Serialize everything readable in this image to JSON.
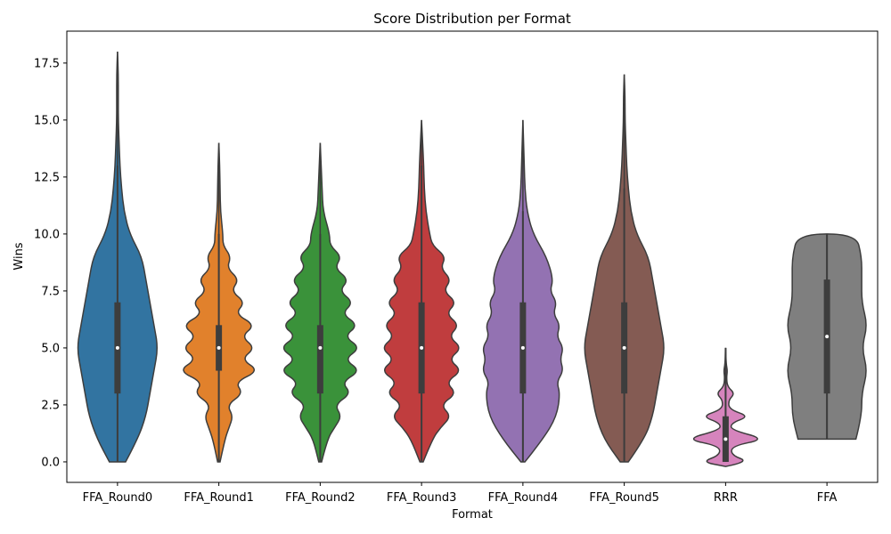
{
  "chart_data": {
    "type": "violin",
    "title": "Score Distribution per Format",
    "xlabel": "Format",
    "ylabel": "Wins",
    "ylim": [
      -0.9,
      18.9
    ],
    "yticks": [
      "0.0",
      "2.5",
      "5.0",
      "7.5",
      "10.0",
      "12.5",
      "15.0",
      "17.5"
    ],
    "grid": false,
    "colors": [
      "#3274a1",
      "#e1812c",
      "#3a923a",
      "#c03d3e",
      "#9372b2",
      "#845b53",
      "#d684bd",
      "#7f7f7f"
    ],
    "categories": [
      "FFA_Round0",
      "FFA_Round1",
      "FFA_Round2",
      "FFA_Round3",
      "FFA_Round4",
      "FFA_Round5",
      "RRR",
      "FFA"
    ],
    "series": [
      {
        "category": "FFA_Round0",
        "min": 0,
        "q1": 3,
        "median": 5,
        "q3": 7,
        "max": 18,
        "whisker_high": 13,
        "density": [
          [
            0,
            0.1
          ],
          [
            1,
            0.25
          ],
          [
            2,
            0.35
          ],
          [
            3,
            0.4
          ],
          [
            4,
            0.45
          ],
          [
            5,
            0.5
          ],
          [
            6,
            0.45
          ],
          [
            7,
            0.4
          ],
          [
            8,
            0.35
          ],
          [
            9,
            0.3
          ],
          [
            10,
            0.15
          ],
          [
            11,
            0.08
          ],
          [
            12,
            0.05
          ],
          [
            13,
            0.03
          ],
          [
            14,
            0.02
          ],
          [
            15,
            0.01
          ],
          [
            16,
            0.01
          ],
          [
            17,
            0.01
          ],
          [
            18,
            0.0
          ]
        ]
      },
      {
        "category": "FFA_Round1",
        "min": 0,
        "q1": 4,
        "median": 5,
        "q3": 6,
        "max": 14,
        "whisker_high": 10,
        "density": [
          [
            0,
            0.03
          ],
          [
            1,
            0.15
          ],
          [
            1.5,
            0.25
          ],
          [
            2,
            0.35
          ],
          [
            2.5,
            0.2
          ],
          [
            3,
            0.6
          ],
          [
            3.5,
            0.4
          ],
          [
            4,
            1.0
          ],
          [
            4.5,
            0.55
          ],
          [
            5,
            0.9
          ],
          [
            5.5,
            0.55
          ],
          [
            6,
            0.9
          ],
          [
            6.5,
            0.4
          ],
          [
            7,
            0.65
          ],
          [
            7.5,
            0.3
          ],
          [
            8,
            0.5
          ],
          [
            8.5,
            0.2
          ],
          [
            9,
            0.3
          ],
          [
            9.5,
            0.1
          ],
          [
            10,
            0.1
          ],
          [
            11,
            0.04
          ],
          [
            12,
            0.03
          ],
          [
            13,
            0.02
          ],
          [
            14,
            0.0
          ]
        ]
      },
      {
        "category": "FFA_Round2",
        "min": 0,
        "q1": 3,
        "median": 5,
        "q3": 6,
        "max": 14,
        "whisker_high": 10,
        "density": [
          [
            0,
            0.03
          ],
          [
            1,
            0.15
          ],
          [
            1.5,
            0.3
          ],
          [
            2,
            0.45
          ],
          [
            2.5,
            0.3
          ],
          [
            3,
            0.65
          ],
          [
            3.5,
            0.45
          ],
          [
            4,
            0.85
          ],
          [
            4.5,
            0.5
          ],
          [
            5,
            0.85
          ],
          [
            5.5,
            0.5
          ],
          [
            6,
            0.8
          ],
          [
            6.5,
            0.45
          ],
          [
            7,
            0.7
          ],
          [
            7.5,
            0.4
          ],
          [
            8,
            0.6
          ],
          [
            8.5,
            0.3
          ],
          [
            9,
            0.45
          ],
          [
            9.5,
            0.2
          ],
          [
            10,
            0.2
          ],
          [
            11,
            0.06
          ],
          [
            12,
            0.04
          ],
          [
            13,
            0.02
          ],
          [
            14,
            0.0
          ]
        ]
      },
      {
        "category": "FFA_Round3",
        "min": 0,
        "q1": 3,
        "median": 5,
        "q3": 7,
        "max": 15,
        "whisker_high": 13,
        "density": [
          [
            0,
            0.03
          ],
          [
            1,
            0.2
          ],
          [
            1.5,
            0.35
          ],
          [
            2,
            0.55
          ],
          [
            2.5,
            0.35
          ],
          [
            3,
            0.65
          ],
          [
            3.5,
            0.45
          ],
          [
            4,
            0.75
          ],
          [
            4.5,
            0.5
          ],
          [
            5,
            0.75
          ],
          [
            5.5,
            0.5
          ],
          [
            6,
            0.7
          ],
          [
            6.5,
            0.45
          ],
          [
            7,
            0.65
          ],
          [
            7.5,
            0.4
          ],
          [
            8,
            0.55
          ],
          [
            8.5,
            0.35
          ],
          [
            9,
            0.45
          ],
          [
            9.5,
            0.2
          ],
          [
            10,
            0.15
          ],
          [
            11,
            0.08
          ],
          [
            12,
            0.05
          ],
          [
            13,
            0.04
          ],
          [
            14,
            0.02
          ],
          [
            15,
            0.0
          ]
        ]
      },
      {
        "category": "FFA_Round4",
        "min": 0,
        "q1": 3,
        "median": 5,
        "q3": 7,
        "max": 15,
        "whisker_high": 11,
        "density": [
          [
            0,
            0.03
          ],
          [
            1,
            0.3
          ],
          [
            2,
            0.5
          ],
          [
            3,
            0.55
          ],
          [
            3.5,
            0.5
          ],
          [
            4,
            0.6
          ],
          [
            4.5,
            0.55
          ],
          [
            5,
            0.6
          ],
          [
            5.5,
            0.5
          ],
          [
            6,
            0.55
          ],
          [
            6.5,
            0.45
          ],
          [
            7,
            0.5
          ],
          [
            7.5,
            0.4
          ],
          [
            8,
            0.45
          ],
          [
            9,
            0.35
          ],
          [
            10,
            0.15
          ],
          [
            11,
            0.06
          ],
          [
            12,
            0.03
          ],
          [
            13,
            0.02
          ],
          [
            14,
            0.01
          ],
          [
            15,
            0.0
          ]
        ]
      },
      {
        "category": "FFA_Round5",
        "min": 0,
        "q1": 3,
        "median": 5,
        "q3": 7,
        "max": 17,
        "whisker_high": 12,
        "density": [
          [
            0,
            0.05
          ],
          [
            1,
            0.25
          ],
          [
            2,
            0.35
          ],
          [
            3,
            0.4
          ],
          [
            4,
            0.45
          ],
          [
            5,
            0.5
          ],
          [
            6,
            0.45
          ],
          [
            7,
            0.4
          ],
          [
            8,
            0.35
          ],
          [
            9,
            0.3
          ],
          [
            10,
            0.15
          ],
          [
            11,
            0.08
          ],
          [
            12,
            0.05
          ],
          [
            13,
            0.03
          ],
          [
            14,
            0.02
          ],
          [
            15,
            0.01
          ],
          [
            16,
            0.01
          ],
          [
            17,
            0.0
          ]
        ]
      },
      {
        "category": "RRR",
        "min": 0,
        "q1": 0,
        "median": 1,
        "q3": 2,
        "max": 5,
        "whisker_high": 5,
        "density": [
          [
            -0.2,
            0.0
          ],
          [
            0,
            1.3
          ],
          [
            0.3,
            0.3
          ],
          [
            0.7,
            0.35
          ],
          [
            1,
            2.2
          ],
          [
            1.4,
            0.3
          ],
          [
            1.7,
            0.3
          ],
          [
            2,
            1.3
          ],
          [
            2.3,
            0.2
          ],
          [
            2.7,
            0.15
          ],
          [
            3,
            0.5
          ],
          [
            3.3,
            0.1
          ],
          [
            3.7,
            0.05
          ],
          [
            4,
            0.1
          ],
          [
            4.3,
            0.03
          ],
          [
            5,
            0.0
          ]
        ]
      },
      {
        "category": "FFA",
        "min": 1,
        "q1": 3,
        "median": 5.5,
        "q3": 8,
        "max": 10,
        "whisker_high": 10,
        "density": [
          [
            1,
            0.25
          ],
          [
            2,
            0.3
          ],
          [
            3,
            0.3
          ],
          [
            4,
            0.35
          ],
          [
            5,
            0.3
          ],
          [
            6,
            0.35
          ],
          [
            7,
            0.3
          ],
          [
            8,
            0.3
          ],
          [
            9,
            0.3
          ],
          [
            10,
            0.25
          ]
        ]
      }
    ]
  }
}
